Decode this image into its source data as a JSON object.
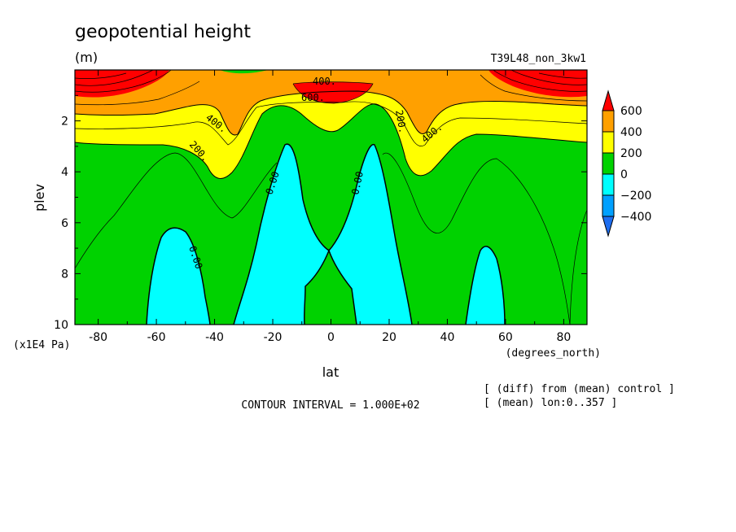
{
  "header": {
    "title": "geopotential height",
    "units": "(m)",
    "run_name": "T39L48_non_3kw1"
  },
  "chart_data": {
    "type": "heatmap",
    "subtype": "filled contour (latitude-pressure cross section)",
    "xlabel": "lat",
    "x_unit_label": "(degrees_north)",
    "ylabel": "plev",
    "y_unit_label": "(x1E4 Pa)",
    "xlim": [
      -88,
      88
    ],
    "ylim": [
      10,
      0
    ],
    "x_ticks": [
      -80,
      -60,
      -40,
      -20,
      0,
      20,
      40,
      60,
      80
    ],
    "x_tick_labels": [
      "-80",
      "-60",
      "-40",
      "-20",
      "0",
      "20",
      "40",
      "60",
      "80"
    ],
    "y_ticks": [
      2,
      4,
      6,
      8,
      10
    ],
    "y_tick_labels": [
      "2",
      "4",
      "6",
      "8",
      "10"
    ],
    "y_axis_inverted": true,
    "colorbar": {
      "position": "right",
      "levels": [
        -400,
        -200,
        0,
        200,
        400,
        600
      ],
      "labels": [
        "600",
        "400",
        "200",
        "0",
        "−200",
        "−400"
      ],
      "colors": {
        "below_-400": "#1e6ef0",
        "-400_-200": "#00a0ff",
        "-200_0": "#00ffff",
        "0_200": "#00d200",
        "200_400": "#ffff00",
        "400_600": "#ffa000",
        "above_600": "#ff0000"
      }
    },
    "contour_labels": [
      "400.",
      "600.",
      "400.",
      "200.",
      "200.",
      "400.",
      "0.00",
      "0.00",
      "0.00"
    ],
    "contour_interval_text": "CONTOUR INTERVAL = 1.000E+02",
    "notes": [
      "[ (diff) from (mean) control ]",
      "[ (mean) lon:0..357 ]"
    ]
  }
}
